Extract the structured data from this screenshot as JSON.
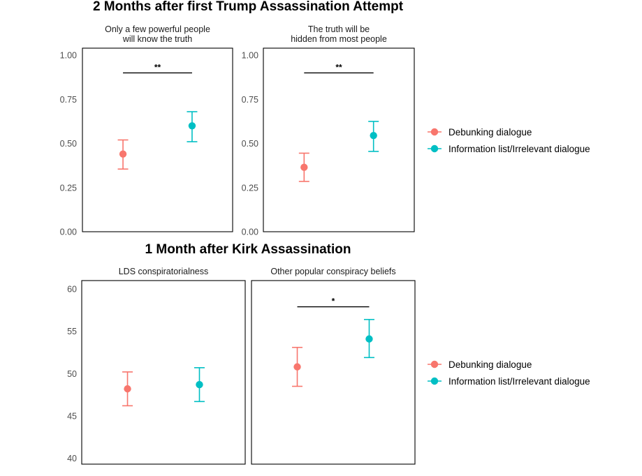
{
  "colors": {
    "debunking": "#F8766D",
    "information": "#00BFC4",
    "panel_border": "#000000",
    "tick_text": "#4d4d4d"
  },
  "chart_data": [
    {
      "type": "scatter",
      "title": "2 Months after first Trump Assassination Attempt",
      "legend": [
        "Debunking dialogue",
        "Information list/Irrelevant dialogue"
      ],
      "legend_position": "right",
      "ylim": [
        0,
        1.04
      ],
      "yticks": [
        "0.00",
        "0.25",
        "0.50",
        "0.75",
        "1.00"
      ],
      "grid": false,
      "panels": [
        {
          "strip": [
            "Only a few powerful people",
            "will know the truth"
          ],
          "points": [
            {
              "series": "Debunking dialogue",
              "estimate": 0.44,
              "low": 0.355,
              "high": 0.52
            },
            {
              "series": "Information list/Irrelevant dialogue",
              "estimate": 0.6,
              "low": 0.51,
              "high": 0.68
            }
          ],
          "significance": "**",
          "sig_y": 0.9
        },
        {
          "strip": [
            "The truth will be",
            "hidden from most people"
          ],
          "points": [
            {
              "series": "Debunking dialogue",
              "estimate": 0.365,
              "low": 0.285,
              "high": 0.445
            },
            {
              "series": "Information list/Irrelevant dialogue",
              "estimate": 0.545,
              "low": 0.455,
              "high": 0.625
            }
          ],
          "significance": "**",
          "sig_y": 0.9
        }
      ]
    },
    {
      "type": "scatter",
      "title": "1 Month after Kirk Assassination",
      "legend": [
        "Debunking dialogue",
        "Information list/Irrelevant dialogue"
      ],
      "legend_position": "right",
      "ylim": [
        39.3,
        61.0
      ],
      "yticks": [
        "40",
        "45",
        "50",
        "55",
        "60"
      ],
      "grid": false,
      "panels": [
        {
          "strip": [
            "LDS conspiratorialness"
          ],
          "points": [
            {
              "series": "Debunking dialogue",
              "estimate": 48.2,
              "low": 46.2,
              "high": 50.2
            },
            {
              "series": "Information list/Irrelevant dialogue",
              "estimate": 48.7,
              "low": 46.7,
              "high": 50.7
            }
          ],
          "significance": "",
          "sig_y": null
        },
        {
          "strip": [
            "Other popular conspiracy beliefs"
          ],
          "points": [
            {
              "series": "Debunking dialogue",
              "estimate": 50.8,
              "low": 48.5,
              "high": 53.1
            },
            {
              "series": "Information list/Irrelevant dialogue",
              "estimate": 54.1,
              "low": 51.9,
              "high": 56.4
            }
          ],
          "significance": "*",
          "sig_y": 57.9
        }
      ]
    }
  ]
}
